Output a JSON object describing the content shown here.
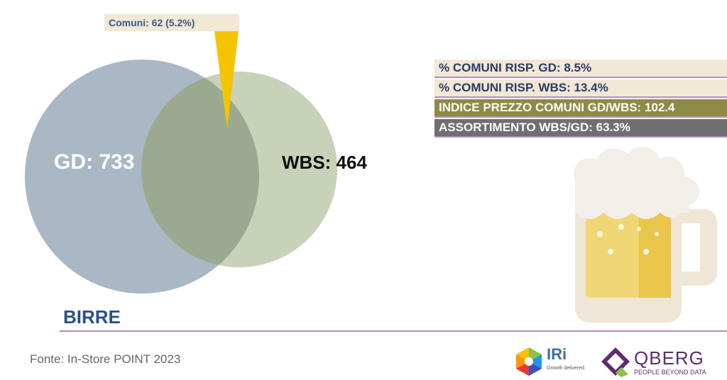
{
  "callout": {
    "text": "Comuni: 62 (5.2%)"
  },
  "venn": {
    "left": {
      "label": "GD: 733",
      "color": "#a9b8c4"
    },
    "right": {
      "label": "WBS: 464",
      "color": "#c7d2b8"
    },
    "overlap_color": "#9aa990",
    "pointer_color": "#f5c400"
  },
  "stats": [
    "% COMUNI RISP. GD: 8.5%",
    "% COMUNI RISP. WBS: 13.4%",
    "INDICE PREZZO COMUNI GD/WBS: 102.4",
    "ASSORTIMENTO WBS/GD: 63.3%"
  ],
  "category_title": "BIRRE",
  "source": "Fonte: In-Store POINT 2023",
  "logos": {
    "iri": {
      "name": "IRi",
      "tagline": "Growth delivered."
    },
    "qberg": {
      "name": "QBERG",
      "tagline": "PEOPLE BEYOND DATA"
    }
  },
  "icons": [
    "beer-mug-icon",
    "iri-logo-icon",
    "qberg-logo-icon"
  ]
}
